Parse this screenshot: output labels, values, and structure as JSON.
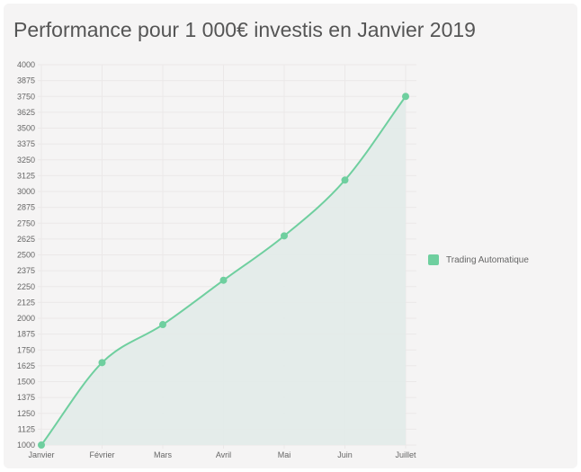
{
  "page": {
    "title": "Performance pour 1 000€ investis en Janvier 2019"
  },
  "colors": {
    "line": "#6fcf9f",
    "point": "#6fcf9f",
    "fill": "#e2ebe9",
    "grid": "#ebe8e8",
    "tick_text": "#666666"
  },
  "chart_data": {
    "type": "area",
    "title": "Performance pour 1 000€ investis en Janvier 2019",
    "categories": [
      "Janvier",
      "Février",
      "Mars",
      "Avril",
      "Mai",
      "Juin",
      "Juillet"
    ],
    "series": [
      {
        "name": "Trading Automatique",
        "values": [
          1000,
          1650,
          1950,
          2300,
          2650,
          3090,
          3750
        ]
      }
    ],
    "ylim": [
      1000,
      4000
    ],
    "y_ticks": [
      1000,
      1125,
      1250,
      1375,
      1500,
      1625,
      1750,
      1875,
      2000,
      2125,
      2250,
      2375,
      2500,
      2625,
      2750,
      2875,
      3000,
      3125,
      3250,
      3375,
      3500,
      3625,
      3750,
      3875,
      4000
    ],
    "grid": true,
    "legend_position": "right",
    "smooth": true
  }
}
